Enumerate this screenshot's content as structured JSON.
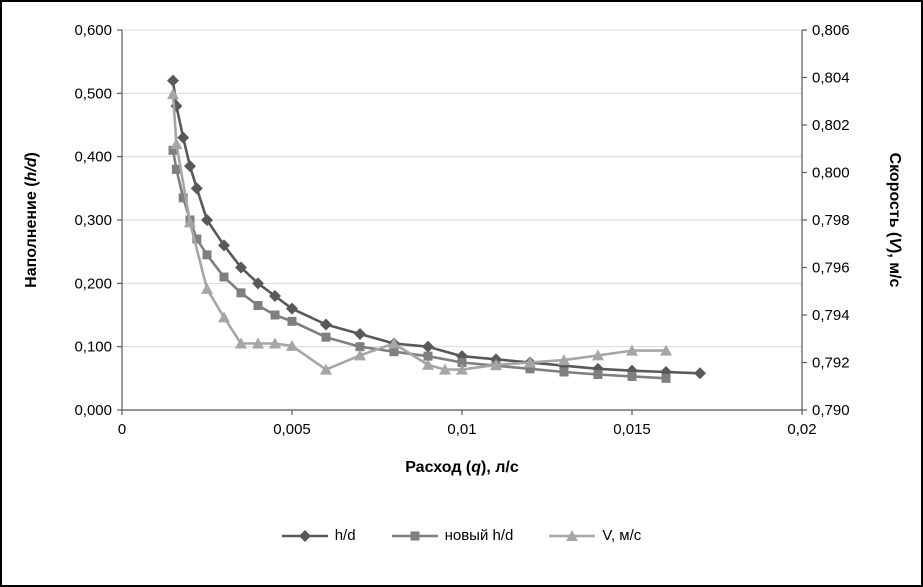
{
  "figure": {
    "background": "#ffffff",
    "border_color": "#000000",
    "grid_color": "#d9d9d9",
    "axis_color": "#595959",
    "text_color": "#000000"
  },
  "chart_data": {
    "type": "line",
    "title": "",
    "grid": "horizontal",
    "legend_position": "bottom",
    "x_axis": {
      "label": "Расход (q), л/с",
      "label_parts": [
        {
          "t": "Расход ("
        },
        {
          "t": "q",
          "i": true
        },
        {
          "t": "), л/с"
        }
      ],
      "min": 0,
      "max": 0.02,
      "tick_values": [
        0,
        0.005,
        0.01,
        0.015,
        0.02
      ],
      "tick_labels": [
        "0",
        "0,005",
        "0,01",
        "0,015",
        "0,02"
      ]
    },
    "y_left_axis": {
      "label": "Наполнение (h/d)",
      "label_parts": [
        {
          "t": "Наполнение ("
        },
        {
          "t": "h/d",
          "i": true
        },
        {
          "t": ")"
        }
      ],
      "min": 0,
      "max": 0.6,
      "tick_values": [
        0,
        0.1,
        0.2,
        0.3,
        0.4,
        0.5,
        0.6
      ],
      "tick_labels": [
        "0,000",
        "0,100",
        "0,200",
        "0,300",
        "0,400",
        "0,500",
        "0,600"
      ]
    },
    "y_right_axis": {
      "label": "Скорость (V), м/с",
      "label_parts": [
        {
          "t": "Скорость ("
        },
        {
          "t": "V",
          "i": true
        },
        {
          "t": "), м/с"
        }
      ],
      "min": 0.79,
      "max": 0.806,
      "tick_values": [
        0.79,
        0.792,
        0.794,
        0.796,
        0.798,
        0.8,
        0.802,
        0.804,
        0.806
      ],
      "tick_labels": [
        "0,790",
        "0,792",
        "0,794",
        "0,796",
        "0,798",
        "0,800",
        "0,802",
        "0,804",
        "0,806"
      ]
    },
    "series": [
      {
        "name": "h/d",
        "axis": "left",
        "color": "#595959",
        "marker": "diamond",
        "points": [
          [
            0.0015,
            0.52
          ],
          [
            0.0016,
            0.48
          ],
          [
            0.0018,
            0.43
          ],
          [
            0.002,
            0.385
          ],
          [
            0.0022,
            0.35
          ],
          [
            0.0025,
            0.3
          ],
          [
            0.003,
            0.26
          ],
          [
            0.0035,
            0.225
          ],
          [
            0.004,
            0.2
          ],
          [
            0.0045,
            0.18
          ],
          [
            0.005,
            0.16
          ],
          [
            0.006,
            0.135
          ],
          [
            0.007,
            0.12
          ],
          [
            0.008,
            0.105
          ],
          [
            0.009,
            0.1
          ],
          [
            0.01,
            0.085
          ],
          [
            0.011,
            0.08
          ],
          [
            0.012,
            0.075
          ],
          [
            0.013,
            0.07
          ],
          [
            0.014,
            0.065
          ],
          [
            0.015,
            0.062
          ],
          [
            0.016,
            0.06
          ],
          [
            0.017,
            0.058
          ]
        ]
      },
      {
        "name": "новый h/d",
        "axis": "left",
        "color": "#7f7f7f",
        "marker": "square",
        "points": [
          [
            0.0015,
            0.41
          ],
          [
            0.0016,
            0.38
          ],
          [
            0.0018,
            0.335
          ],
          [
            0.002,
            0.3
          ],
          [
            0.0022,
            0.27
          ],
          [
            0.0025,
            0.245
          ],
          [
            0.003,
            0.21
          ],
          [
            0.0035,
            0.185
          ],
          [
            0.004,
            0.165
          ],
          [
            0.0045,
            0.15
          ],
          [
            0.005,
            0.14
          ],
          [
            0.006,
            0.115
          ],
          [
            0.007,
            0.1
          ],
          [
            0.008,
            0.092
          ],
          [
            0.009,
            0.085
          ],
          [
            0.01,
            0.075
          ],
          [
            0.011,
            0.07
          ],
          [
            0.012,
            0.065
          ],
          [
            0.013,
            0.06
          ],
          [
            0.014,
            0.056
          ],
          [
            0.015,
            0.053
          ],
          [
            0.016,
            0.05
          ]
        ]
      },
      {
        "name": "V, м/с",
        "axis": "right",
        "color": "#a6a6a6",
        "marker": "triangle",
        "points": [
          [
            0.0015,
            0.8033
          ],
          [
            0.0016,
            0.8012
          ],
          [
            0.002,
            0.7979
          ],
          [
            0.0025,
            0.7951
          ],
          [
            0.003,
            0.7939
          ],
          [
            0.0035,
            0.7928
          ],
          [
            0.004,
            0.7928
          ],
          [
            0.0045,
            0.7928
          ],
          [
            0.005,
            0.7927
          ],
          [
            0.006,
            0.7917
          ],
          [
            0.007,
            0.7923
          ],
          [
            0.008,
            0.7928
          ],
          [
            0.009,
            0.7919
          ],
          [
            0.0095,
            0.7917
          ],
          [
            0.01,
            0.7917
          ],
          [
            0.011,
            0.7919
          ],
          [
            0.012,
            0.792
          ],
          [
            0.013,
            0.7921
          ],
          [
            0.014,
            0.7923
          ],
          [
            0.015,
            0.7925
          ],
          [
            0.016,
            0.7925
          ]
        ]
      }
    ]
  }
}
